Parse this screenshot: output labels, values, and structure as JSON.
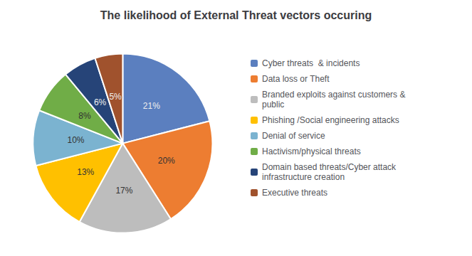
{
  "chart_data": {
    "type": "pie",
    "title": "The likelihood of External Threat vectors occuring",
    "categories": [
      "Cyber threats  & incidents",
      "Data loss or Theft",
      "Branded exploits against customers &\npublic",
      "Phishing /Social engineering attacks",
      "Denial of service",
      "Hactivism/physical threats",
      "Domain based threats/Cyber attack\ninfrastructure creation",
      "Executive threats"
    ],
    "values": [
      21,
      20,
      17,
      13,
      10,
      8,
      6,
      5
    ],
    "value_labels": [
      "21%",
      "20%",
      "17%",
      "13%",
      "10%",
      "8%",
      "6%",
      "5%"
    ],
    "colors": [
      "#5B7FBF",
      "#ED7D31",
      "#BDBDBD",
      "#FFC000",
      "#7BB3D0",
      "#70AD47",
      "#264478",
      "#A0522D"
    ],
    "data_labels": true,
    "legend": "right"
  }
}
